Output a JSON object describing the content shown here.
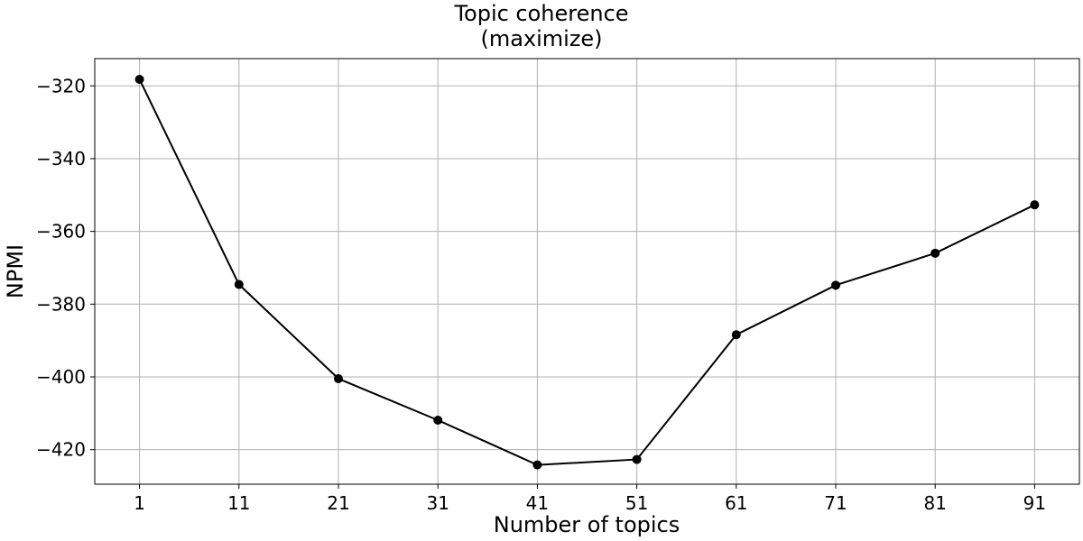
{
  "chart_data": {
    "type": "line",
    "title": "Topic coherence",
    "subtitle": "(maximize)",
    "xlabel": "Number of topics",
    "ylabel": "NPMI",
    "x": [
      1,
      11,
      21,
      31,
      41,
      51,
      61,
      71,
      81,
      91
    ],
    "series": [
      {
        "values": [
          -318.2,
          -374.6,
          -400.5,
          -411.9,
          -424.2,
          -422.7,
          -388.4,
          -374.8,
          -366.0,
          -352.7
        ]
      }
    ],
    "xticks": [
      1,
      11,
      21,
      31,
      41,
      51,
      61,
      71,
      81,
      91
    ],
    "yticks": [
      -320,
      -340,
      -360,
      -380,
      -400,
      -420
    ],
    "xlim": [
      -3.5,
      95.5
    ],
    "ylim": [
      -429.5,
      -312.5
    ],
    "grid": true,
    "line_color": "#000000",
    "grid_color": "#b0b0b0"
  }
}
